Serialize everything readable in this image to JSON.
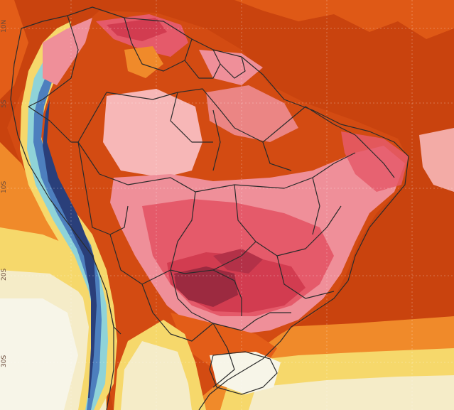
{
  "map": {
    "lat_labels": [
      "10N",
      "5S",
      "10S",
      "20S",
      "30S"
    ],
    "colors": {
      "ocean_hot": "#c9430e",
      "ocean_warm": "#e35d18",
      "orange": "#f08a2a",
      "yellow": "#f6d86b",
      "cream": "#f5ecc8",
      "pale": "#f7f5e8",
      "light_pink": "#f7b7b7",
      "pink": "#ef8f99",
      "hot_pink": "#e55a6a",
      "red": "#d23c50",
      "dark_red": "#9c2a40",
      "cyan": "#8fd3d8",
      "blue": "#4d7fbe",
      "navy": "#2a3f7a",
      "border": "#2b2b2b"
    }
  }
}
